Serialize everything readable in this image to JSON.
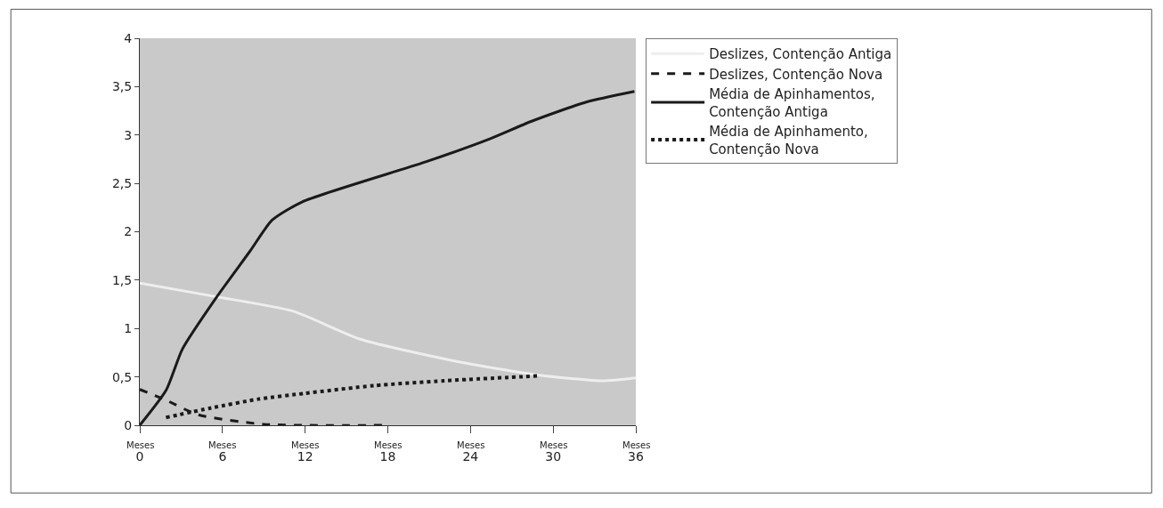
{
  "chart_data": {
    "type": "line",
    "xlim": [
      0,
      36
    ],
    "ylim": [
      0,
      4
    ],
    "xticks": [
      0,
      6,
      12,
      18,
      24,
      30,
      36
    ],
    "annotations": [
      "Meses",
      "Meses",
      "Meses",
      "Meses",
      "Meses",
      "Meses",
      "Meses"
    ],
    "yticks": [
      0,
      {
        "value": 0.5,
        "label": "0,5"
      },
      1,
      {
        "value": 1.5,
        "label": "1,5"
      },
      2,
      {
        "value": 2.5,
        "label": "2,5"
      },
      3,
      {
        "value": 3.5,
        "label": "3,5"
      },
      4
    ],
    "grid": false,
    "legend": "right",
    "marker": "none",
    "series": [
      {
        "name": "Deslizes, Contenção Antiga",
        "color": "#eeeeee",
        "line_style": "solid",
        "x": [
          0,
          5.5,
          11.1,
          16,
          23,
          28.9,
          33.6,
          36
        ],
        "values": [
          1.47,
          1.33,
          1.18,
          0.89,
          0.66,
          0.52,
          0.46,
          0.49
        ]
      },
      {
        "name": "Deslizes, Contenção Nova",
        "color": "#1a1a1a",
        "line_style": "dashed",
        "x": [
          0,
          1.9,
          4.2,
          9,
          18
        ],
        "values": [
          0.37,
          0.26,
          0.11,
          0.01,
          0
        ]
      },
      {
        "name": "Média de Apinhamentos, Contenção Antiga",
        "color": "#1a1a1a",
        "line_style": "solid",
        "x": [
          0,
          1.9,
          3.1,
          5.5,
          8,
          9.6,
          11.8,
          20.7,
          25.4,
          28.4,
          32.4,
          35.9
        ],
        "values": [
          0,
          0.36,
          0.79,
          1.31,
          1.8,
          2.12,
          2.31,
          2.72,
          2.96,
          3.14,
          3.34,
          3.45
        ]
      },
      {
        "name": "Média de Apinhamento, Contenção Nova",
        "color": "#1a1a1a",
        "line_style": "dotted",
        "x": [
          1.9,
          5.2,
          8.6,
          12,
          17,
          22.1,
          28.9
        ],
        "values": [
          0.08,
          0.18,
          0.27,
          0.33,
          0.41,
          0.46,
          0.51
        ]
      }
    ]
  }
}
